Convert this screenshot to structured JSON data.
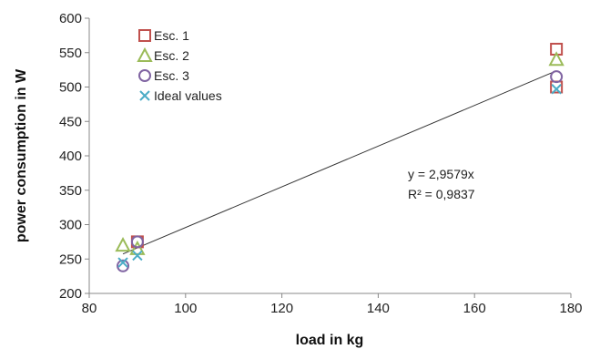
{
  "chart_data": {
    "type": "scatter",
    "title": "",
    "xlabel": "load in kg",
    "ylabel": "power consumption in W",
    "xlim": [
      80,
      180
    ],
    "ylim": [
      200,
      600
    ],
    "xticks": [
      80,
      100,
      120,
      140,
      160,
      180
    ],
    "yticks": [
      200,
      250,
      300,
      350,
      400,
      450,
      500,
      550,
      600
    ],
    "grid": false,
    "legend_position": "top-left",
    "series": [
      {
        "name": "Esc. 1",
        "marker": "square",
        "color": "#c0504d",
        "points": [
          {
            "x": 90,
            "y": 275
          },
          {
            "x": 177,
            "y": 555
          },
          {
            "x": 177,
            "y": 500
          }
        ]
      },
      {
        "name": "Esc. 2",
        "marker": "triangle",
        "color": "#9bbb59",
        "points": [
          {
            "x": 87,
            "y": 270
          },
          {
            "x": 90,
            "y": 265
          },
          {
            "x": 177,
            "y": 540
          }
        ]
      },
      {
        "name": "Esc. 3",
        "marker": "circle",
        "color": "#8064a2",
        "points": [
          {
            "x": 87,
            "y": 240
          },
          {
            "x": 90,
            "y": 275
          },
          {
            "x": 177,
            "y": 515
          }
        ]
      },
      {
        "name": "Ideal values",
        "marker": "cross",
        "color": "#4bacc6",
        "points": [
          {
            "x": 87,
            "y": 245
          },
          {
            "x": 90,
            "y": 255
          },
          {
            "x": 177,
            "y": 497
          }
        ]
      }
    ],
    "trendline": {
      "slope": 2.9579,
      "x_from": 87,
      "x_to": 177,
      "color": "#333333"
    },
    "annotations": {
      "equation": "y = 2,9579x",
      "r_squared": "R² = 0,9837"
    }
  }
}
